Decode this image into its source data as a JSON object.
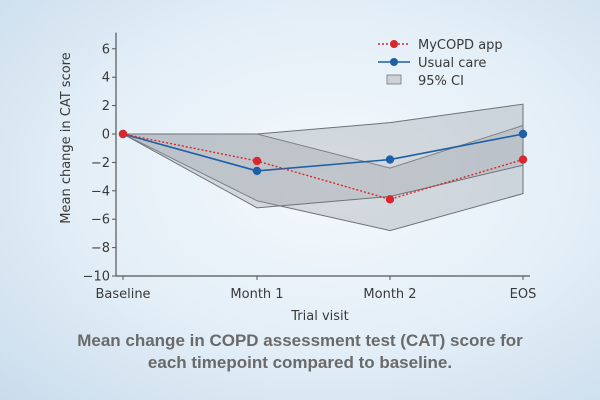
{
  "caption": {
    "line1": "Mean change in COPD assessment test (CAT) score for",
    "line2": "each timepoint compared to baseline."
  },
  "chart_data": {
    "type": "line",
    "title": "",
    "xlabel": "Trial visit",
    "ylabel": "Mean change in CAT score",
    "categories": [
      "Baseline",
      "Month 1",
      "Month 2",
      "EOS"
    ],
    "ylim": [
      -10,
      7
    ],
    "yticks": [
      6,
      4,
      2,
      0,
      -2,
      -4,
      -6,
      -8,
      -10
    ],
    "ytick_labels": [
      "6",
      "4",
      "2",
      "0",
      "−2",
      "−4",
      "−6",
      "−8",
      "−10"
    ],
    "grid": false,
    "legend_position": "top-right",
    "series": [
      {
        "name": "MyCOPD app",
        "style": "dotted",
        "color": "#d9272e",
        "values": [
          0,
          -1.9,
          -4.6,
          -1.8
        ],
        "ci_lower": [
          0,
          -4.7,
          -6.8,
          -4.2
        ],
        "ci_upper": [
          0,
          0.0,
          -2.4,
          0.6
        ]
      },
      {
        "name": "Usual care",
        "style": "solid",
        "color": "#1f5fa8",
        "values": [
          0,
          -2.6,
          -1.8,
          0.0
        ],
        "ci_lower": [
          0,
          -5.2,
          -4.4,
          -2.2
        ],
        "ci_upper": [
          0,
          0.0,
          0.8,
          2.1
        ]
      }
    ],
    "legend": [
      "MyCOPD app",
      "Usual care",
      "95% CI"
    ],
    "ci_color": "#b9bcc0"
  }
}
